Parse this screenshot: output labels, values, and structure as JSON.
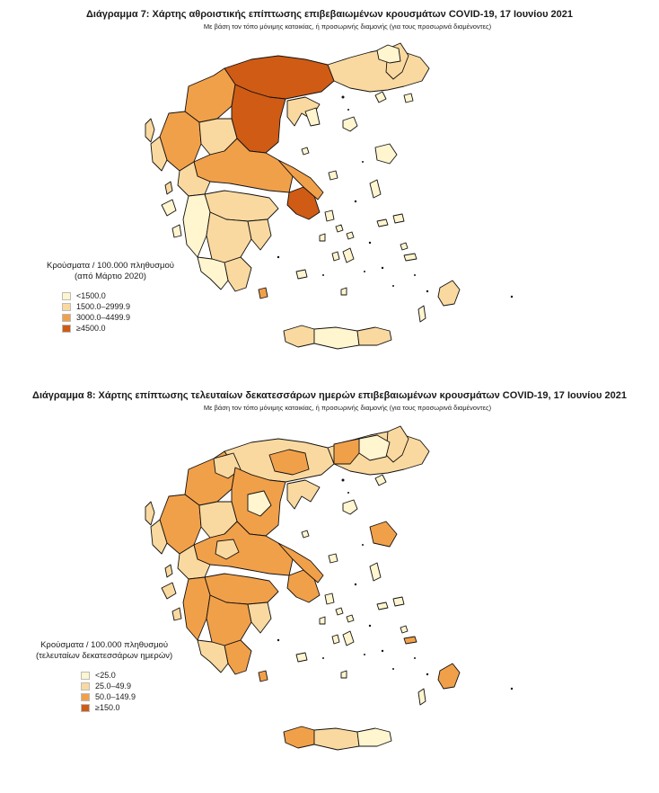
{
  "colors": {
    "class1": "#fff5cf",
    "class2": "#fad9a0",
    "class3": "#f1a04a",
    "class4": "#cf5b15",
    "outline": "#111111"
  },
  "figure1": {
    "title": "Διάγραμμα 7: Χάρτης αθροιστικής επίπτωσης επιβεβαιωμένων κρουσμάτων COVID-19, 17 Ιουνίου 2021",
    "subtitle": "Με βάση τον τόπο μόνιμης κατοικίας, ή προσωρινής διαμονής (για τους προσωρινά διαμένοντες)",
    "legend": {
      "title_line1": "Κρούσματα / 100.000 πληθυσμού",
      "title_line2": "(από Μάρτιο 2020)",
      "items": [
        {
          "label": "<1500.0",
          "color": "#fff5cf"
        },
        {
          "label": "1500.0–2999.9",
          "color": "#fad9a0"
        },
        {
          "label": "3000.0–4499.9",
          "color": "#f1a04a"
        },
        {
          "label": "≥4500.0",
          "color": "#cf5b15"
        }
      ]
    }
  },
  "figure2": {
    "title": "Διάγραμμα 8: Χάρτης επίπτωσης τελευταίων δεκατεσσάρων ημερών επιβεβαιωμένων κρουσμάτων COVID-19, 17 Ιουνίου 2021",
    "subtitle": "Με βάση τον τόπο μόνιμης κατοικίας, ή προσωρινής διαμονής (για τους προσωρινά διαμένοντες)",
    "legend": {
      "title_line1": "Κρούσματα / 100.000 πληθυσμού",
      "title_line2": "(τελευταίων δεκατεσσάρων ημερών)",
      "items": [
        {
          "label": "<25.0",
          "color": "#fff5cf"
        },
        {
          "label": "25.0–49.9",
          "color": "#fad9a0"
        },
        {
          "label": "50.0–149.9",
          "color": "#f1a04a"
        },
        {
          "label": "≥150.0",
          "color": "#cf5b15"
        }
      ]
    }
  }
}
